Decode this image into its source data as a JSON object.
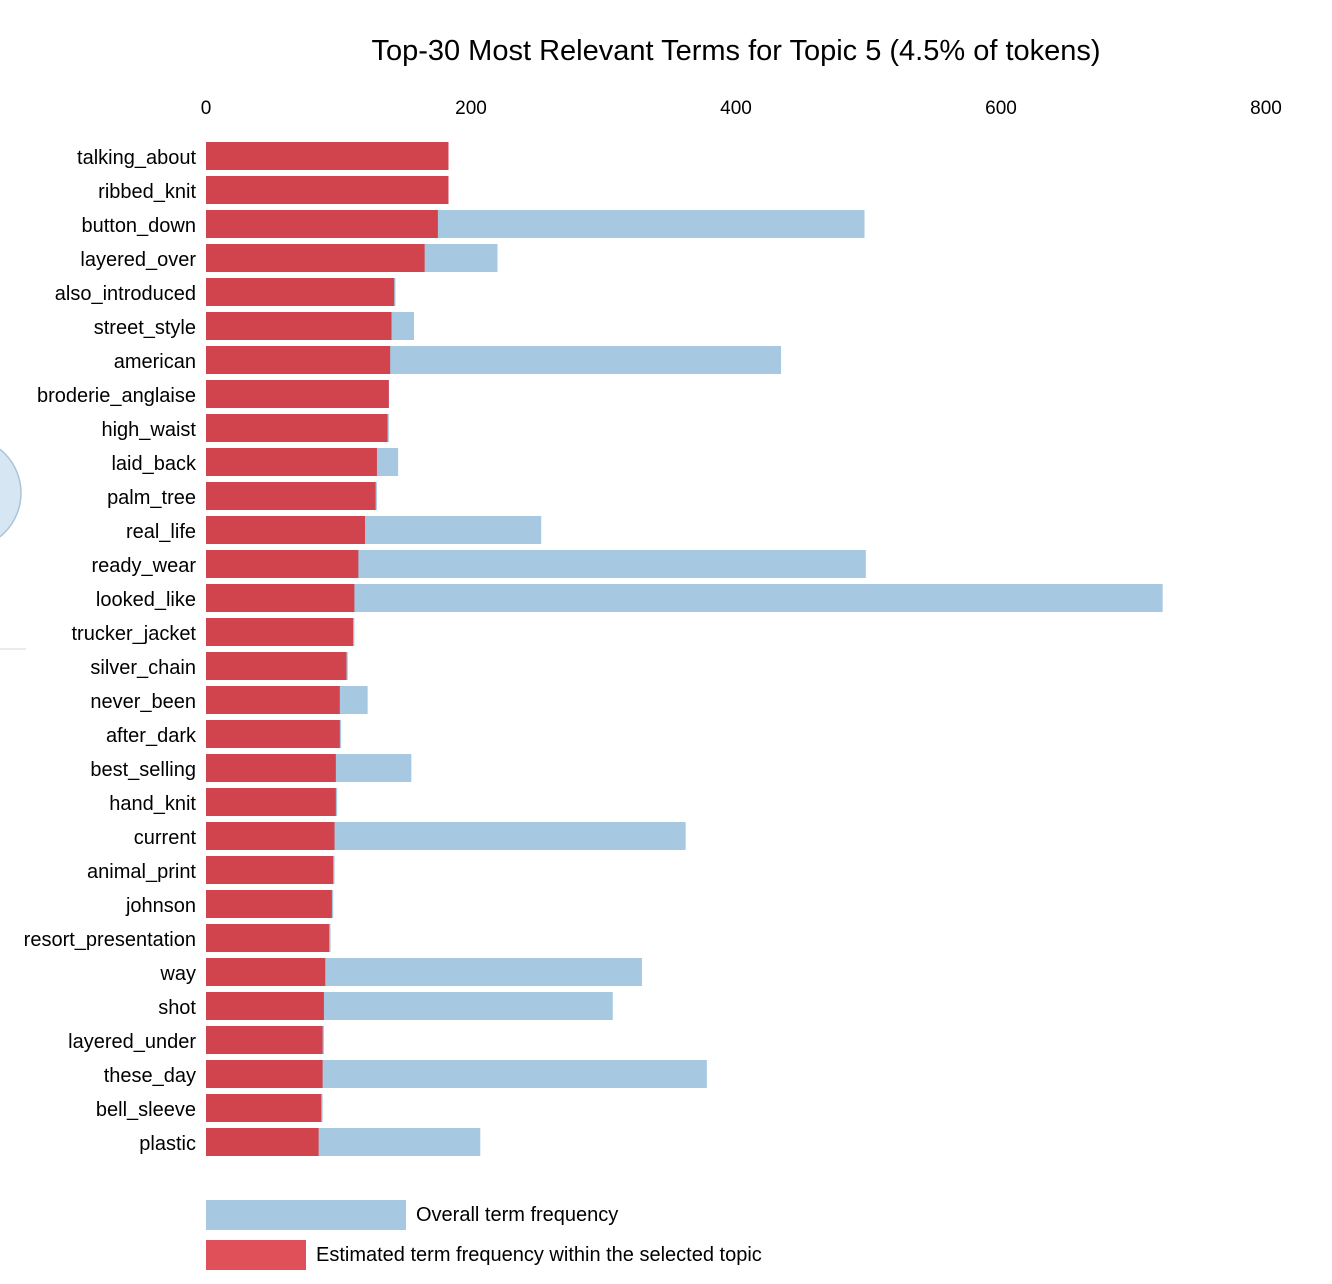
{
  "chart_data": {
    "type": "bar",
    "orientation": "horizontal",
    "title": "Top-30 Most Relevant Terms for Topic 5 (4.5% of tokens)",
    "xlim": [
      0,
      800
    ],
    "x_ticks": [
      0,
      200,
      400,
      600,
      800
    ],
    "axis_position": "top",
    "grid": false,
    "categories": [
      "talking_about",
      "ribbed_knit",
      "button_down",
      "layered_over",
      "also_introduced",
      "street_style",
      "american",
      "broderie_anglaise",
      "high_waist",
      "laid_back",
      "palm_tree",
      "real_life",
      "ready_wear",
      "looked_like",
      "trucker_jacket",
      "silver_chain",
      "never_been",
      "after_dark",
      "best_selling",
      "hand_knit",
      "current",
      "animal_print",
      "johnson",
      "resort_presentation",
      "way",
      "shot",
      "layered_under",
      "these_day",
      "bell_sleeve",
      "plastic"
    ],
    "series": [
      {
        "name": "Overall term frequency",
        "color": "#a6c9e1",
        "values": [
          183,
          183,
          497,
          220,
          143,
          157,
          434,
          138,
          138,
          145,
          129,
          253,
          498,
          722,
          112,
          107,
          122,
          102,
          155,
          99,
          362,
          97,
          96,
          94,
          329,
          307,
          89,
          378,
          88,
          207
        ]
      },
      {
        "name": "Estimated term frequency within the selected topic",
        "color": "#d1444e",
        "values": [
          183,
          183,
          175,
          165,
          142,
          140,
          139,
          138,
          137,
          129,
          128,
          120,
          115,
          112,
          111,
          106,
          101,
          101,
          98,
          98,
          97,
          96,
          95,
          93,
          90,
          89,
          88,
          88,
          87,
          85
        ]
      }
    ],
    "legend": {
      "position": "bottom-left",
      "entries": [
        {
          "label": "Overall term frequency",
          "color": "#a6c9e1"
        },
        {
          "label": "Estimated term frequency within the selected topic",
          "color": "#e05059"
        }
      ]
    }
  }
}
